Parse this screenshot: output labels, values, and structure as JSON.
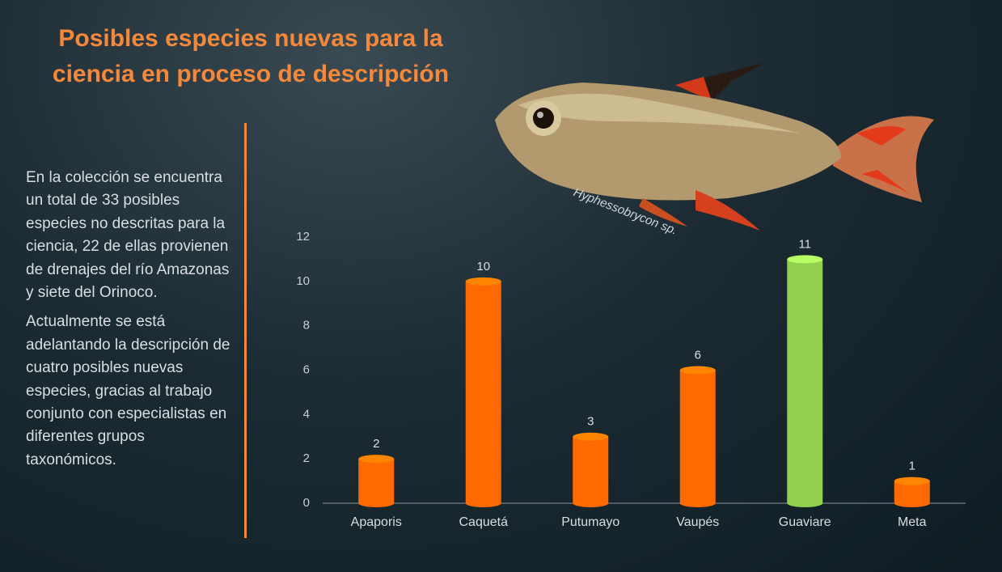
{
  "title": "Posibles especies nuevas para la ciencia en proceso de descripción",
  "paragraphs": [
    "En la colección se encuentra un total de 33 posibles especies no descritas para la ciencia, 22 de ellas provienen de drenajes del río Amazonas y siete del Orinoco.",
    "Actualmente se está adelantando la descripción de cuatro posibles nuevas especies, gracias al trabajo conjunto con especialistas en diferentes grupos taxonómicos."
  ],
  "image_caption": "Hyphessobrycon sp.",
  "chart_data": {
    "type": "bar",
    "categories": [
      "Apaporis",
      "Caquetá",
      "Putumayo",
      "Vaupés",
      "Guaviare",
      "Meta"
    ],
    "values": [
      2,
      10,
      3,
      6,
      11,
      1
    ],
    "colors": [
      "#ff6a00",
      "#ff6a00",
      "#ff6a00",
      "#ff6a00",
      "#92d050",
      "#ff6a00"
    ],
    "ylim": [
      0,
      12
    ],
    "yticks": [
      0,
      2,
      4,
      6,
      8,
      10,
      12
    ],
    "grid": false
  }
}
